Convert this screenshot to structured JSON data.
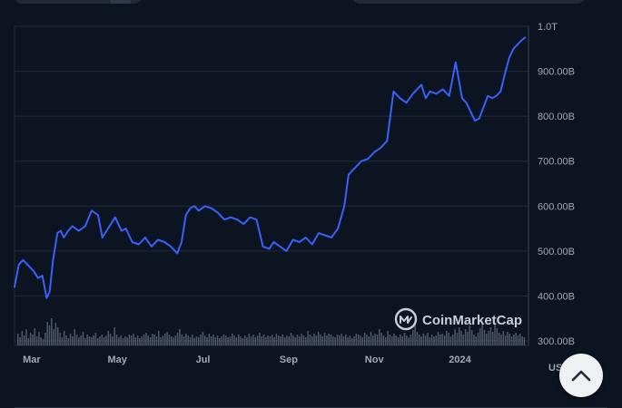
{
  "page": {
    "currency": "USD"
  },
  "brand": {
    "name": "CoinMarketCap",
    "icon": "coinmarketcap-logo-icon"
  },
  "colors": {
    "background": "#0d1421",
    "line": "#3861fb",
    "volume": "#5a6275",
    "grid": "#222a38",
    "text": "#a0a8b8"
  },
  "controls": {
    "scroll_top_icon": "chevron-up-icon"
  },
  "chart_data": {
    "type": "line",
    "ylabel": "",
    "xlabel": "",
    "ylim": [
      290,
      1000
    ],
    "ytick_values": [
      300,
      400,
      500,
      600,
      700,
      800,
      900,
      1000
    ],
    "ytick_labels": [
      "300.00B",
      "400.00B",
      "500.00B",
      "600.00B",
      "700.00B",
      "800.00B",
      "900.00B",
      "1.0T"
    ],
    "xlim": [
      0,
      12
    ],
    "xtick_values": [
      0.4,
      2.4,
      4.4,
      6.4,
      8.4,
      10.4
    ],
    "xtick_labels": [
      "Mar",
      "May",
      "Jul",
      "Sep",
      "Nov",
      "2024"
    ],
    "grid": true,
    "series": [
      {
        "x": [
          0.0,
          0.1,
          0.2,
          0.35,
          0.45,
          0.55,
          0.65,
          0.75,
          0.82,
          0.9,
          1.0,
          1.08,
          1.15,
          1.25,
          1.35,
          1.5,
          1.65,
          1.8,
          1.95,
          2.05,
          2.15,
          2.25,
          2.35,
          2.5,
          2.6,
          2.75,
          2.9,
          3.05,
          3.2,
          3.35,
          3.5,
          3.65,
          3.8,
          3.9,
          4.0,
          4.1,
          4.2,
          4.3,
          4.45,
          4.6,
          4.75,
          4.9,
          5.05,
          5.2,
          5.35,
          5.5,
          5.65,
          5.8,
          5.95,
          6.05,
          6.2,
          6.35,
          6.5,
          6.65,
          6.8,
          6.95,
          7.1,
          7.25,
          7.4,
          7.55,
          7.7,
          7.8,
          7.9,
          8.0,
          8.1,
          8.25,
          8.4,
          8.55,
          8.7,
          8.85,
          9.0,
          9.15,
          9.3,
          9.4,
          9.5,
          9.6,
          9.7,
          9.85,
          10.0,
          10.15,
          10.3,
          10.45,
          10.55,
          10.65,
          10.75,
          10.85,
          10.95,
          11.05,
          11.15,
          11.25,
          11.35,
          11.45,
          11.55,
          11.65,
          11.75,
          11.85,
          11.92
        ],
        "values": [
          420,
          470,
          480,
          465,
          455,
          440,
          445,
          395,
          410,
          480,
          540,
          545,
          530,
          545,
          555,
          545,
          555,
          590,
          580,
          530,
          545,
          560,
          575,
          545,
          550,
          520,
          515,
          530,
          510,
          525,
          520,
          510,
          495,
          520,
          580,
          595,
          600,
          590,
          600,
          595,
          585,
          570,
          575,
          570,
          560,
          575,
          570,
          510,
          505,
          520,
          510,
          500,
          525,
          520,
          530,
          515,
          540,
          535,
          530,
          550,
          600,
          670,
          680,
          690,
          700,
          705,
          720,
          730,
          745,
          855,
          840,
          830,
          850,
          860,
          870,
          840,
          855,
          850,
          860,
          845,
          920,
          840,
          830,
          810,
          790,
          795,
          820,
          845,
          840,
          845,
          855,
          895,
          930,
          950,
          960,
          970,
          975
        ]
      }
    ],
    "volume": [
      13,
      9,
      16,
      11,
      18,
      8,
      14,
      12,
      19,
      10,
      15,
      9,
      7,
      14,
      26,
      22,
      30,
      18,
      25,
      20,
      14,
      9,
      16,
      11,
      8,
      13,
      10,
      18,
      12,
      9,
      11,
      15,
      8,
      12,
      10,
      9,
      11,
      14,
      8,
      10,
      12,
      9,
      11,
      16,
      13,
      10,
      20,
      12,
      9,
      11,
      8,
      10,
      9,
      12,
      11,
      13,
      9,
      11,
      8,
      10,
      12,
      14,
      11,
      9,
      13,
      12,
      10,
      16,
      9,
      11,
      13,
      15,
      12,
      10,
      9,
      11,
      14,
      18,
      12,
      10,
      13,
      11,
      9,
      12,
      8,
      10,
      9,
      12,
      15,
      11,
      9,
      13,
      10,
      12,
      9,
      11,
      8,
      10,
      12,
      11,
      9,
      10,
      13,
      11,
      9,
      12,
      10,
      8,
      11,
      9,
      13,
      10,
      12,
      9,
      11,
      14,
      10,
      12,
      9,
      11,
      10,
      12,
      9,
      13,
      11,
      10,
      12,
      9,
      11,
      10,
      14,
      11,
      9,
      12,
      10,
      13,
      11,
      9,
      16,
      12,
      10,
      13,
      11,
      15,
      12,
      10,
      14,
      11,
      13,
      12,
      10,
      9,
      12,
      11,
      13,
      10,
      12,
      9,
      11,
      8,
      10,
      13,
      12,
      11,
      9,
      14,
      12,
      10,
      15,
      11,
      13,
      12,
      18,
      14,
      11,
      9,
      16,
      12,
      10,
      13,
      11,
      9,
      12,
      10,
      14,
      11,
      9,
      12,
      17,
      24,
      15,
      12,
      10,
      13,
      11,
      14,
      9,
      12,
      10,
      11,
      15,
      12,
      13,
      11,
      16,
      14,
      10,
      12,
      18,
      14,
      20,
      16,
      12,
      18,
      15,
      22,
      17,
      12,
      10,
      14,
      19,
      23,
      17,
      13,
      16,
      20,
      15,
      25,
      19,
      14,
      12,
      16,
      11,
      15,
      13,
      10,
      12,
      14,
      11,
      13,
      10,
      9
    ]
  }
}
